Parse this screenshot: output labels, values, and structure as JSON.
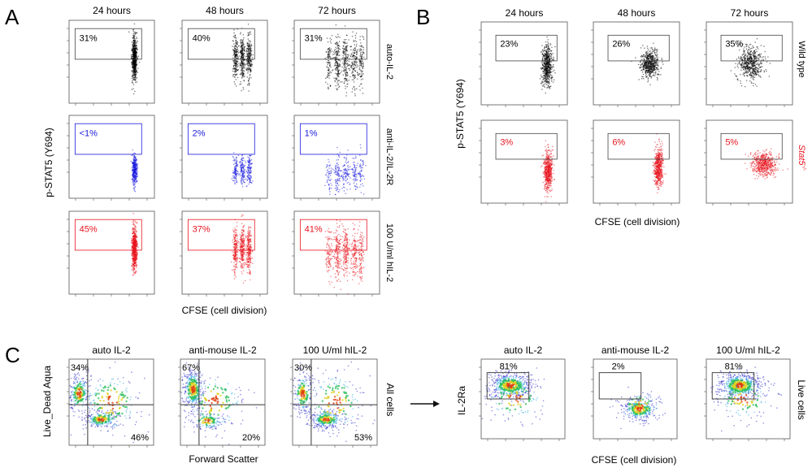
{
  "chart_data": [
    {
      "type": "scatter",
      "panel_label": "A",
      "columns": [
        "24 hours",
        "48 hours",
        "72 hours"
      ],
      "rows": [
        {
          "label": "auto-IL-2",
          "color": "#000000",
          "gates": [
            "31%",
            "40%",
            "31%"
          ]
        },
        {
          "label": "anti-IL-2/IL-2R",
          "color": "#1a1adc",
          "gates": [
            "<1%",
            "2%",
            "1%"
          ]
        },
        {
          "label": "100 U/ml hIL-2",
          "color": "#e8141e",
          "gates": [
            "45%",
            "37%",
            "41%"
          ]
        }
      ],
      "ylabel": "p-STAT5 (Y694)",
      "xlabel": "CFSE (cell division)",
      "log_axes": true
    },
    {
      "type": "scatter",
      "panel_label": "B",
      "columns": [
        "24 hours",
        "48 hours",
        "72 hours"
      ],
      "rows": [
        {
          "label": "Wild type",
          "color": "#000000",
          "gates": [
            "23%",
            "26%",
            "35%"
          ]
        },
        {
          "label": "Stat5",
          "label_sup": "-/-",
          "color": "#e8141e",
          "gates": [
            "3%",
            "6%",
            "5%"
          ]
        }
      ],
      "ylabel": "p-STAT5 (Y694)",
      "xlabel": "CFSE (cell division)",
      "log_axes": true
    },
    {
      "type": "scatter",
      "panel_label": "C",
      "subtype": "density",
      "columns": [
        "auto IL-2",
        "anti-mouse IL-2",
        "100 U/ml hIL-2"
      ],
      "row_label": "All cells",
      "quadrants": [
        {
          "upper_left": "34%",
          "lower_right": "46%"
        },
        {
          "upper_left": "67%",
          "lower_right": "20%"
        },
        {
          "upper_left": "30%",
          "lower_right": "53%"
        }
      ],
      "ylabel": "Live_Dead Aqua",
      "xlabel": "Forward Scatter"
    },
    {
      "type": "scatter",
      "subtype": "density",
      "columns": [
        "auto IL-2",
        "anti-mouse IL-2",
        "100 U/ml hIL-2"
      ],
      "row_label": "Live cells",
      "gates": [
        "81%",
        "2%",
        "81%"
      ],
      "ylabel": "IL-2Ra",
      "xlabel": "CFSE (cell division)"
    }
  ],
  "colors": {
    "axis": "#555555",
    "gate": "#444444",
    "density": [
      "#2020c8",
      "#1aa0e0",
      "#30c060",
      "#e0d020",
      "#e04010"
    ]
  }
}
